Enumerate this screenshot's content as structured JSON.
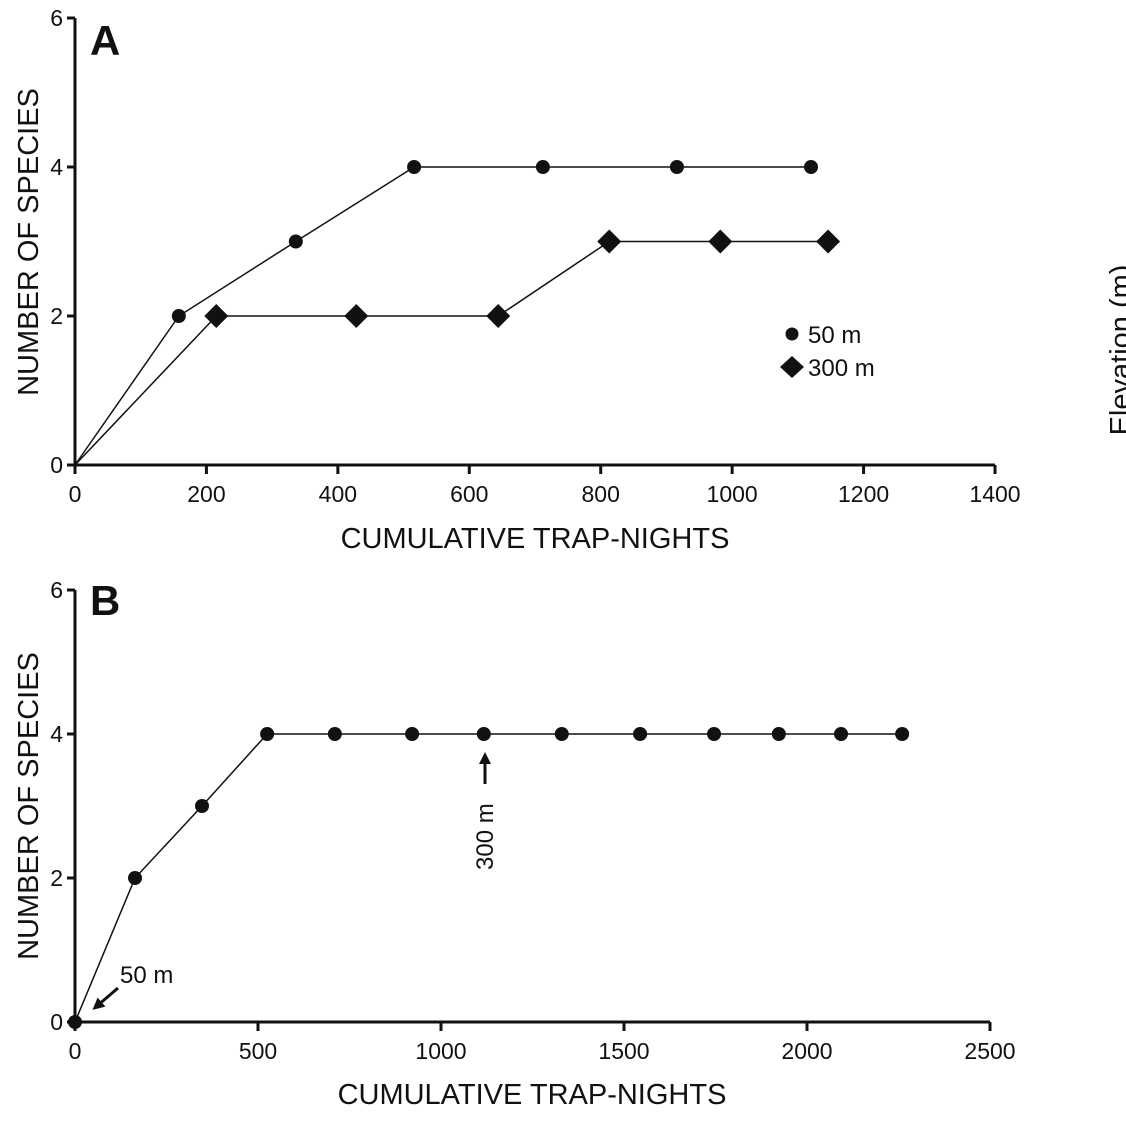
{
  "right_label": "Elevation (m)",
  "chart_data": [
    {
      "type": "line",
      "panel_label": "A",
      "xlabel": "CUMULATIVE TRAP-NIGHTS",
      "ylabel": "NUMBER OF SPECIES",
      "xlim": [
        0,
        1400
      ],
      "ylim": [
        0,
        6
      ],
      "xticks": [
        0,
        200,
        400,
        600,
        800,
        1000,
        1200,
        1400
      ],
      "yticks": [
        0,
        2,
        4,
        6
      ],
      "grid": false,
      "legend_position": "right",
      "series": [
        {
          "name": "50 m",
          "marker": "circle",
          "x": [
            0,
            158,
            336,
            516,
            712,
            916,
            1120
          ],
          "y": [
            0,
            2,
            3,
            4,
            4,
            4,
            4
          ]
        },
        {
          "name": "300 m",
          "marker": "diamond",
          "x": [
            0,
            215,
            428,
            644,
            813,
            982,
            1146
          ],
          "y": [
            0,
            2,
            2,
            2,
            3,
            3,
            3
          ]
        }
      ]
    },
    {
      "type": "line",
      "panel_label": "B",
      "xlabel": "CUMULATIVE TRAP-NIGHTS",
      "ylabel": "NUMBER OF SPECIES",
      "xlim": [
        0,
        2500
      ],
      "ylim": [
        0,
        6
      ],
      "xticks": [
        0,
        500,
        1000,
        1500,
        2000,
        2500
      ],
      "yticks": [
        0,
        2,
        4,
        6
      ],
      "grid": false,
      "series": [
        {
          "marker": "circle",
          "x": [
            0,
            164,
            347,
            525,
            710,
            921,
            1117,
            1330,
            1544,
            1746,
            1923,
            2093,
            2260
          ],
          "y": [
            0,
            2,
            3,
            4,
            4,
            4,
            4,
            4,
            4,
            4,
            4,
            4,
            4
          ]
        }
      ],
      "annotations": [
        {
          "text": "50 m",
          "x": 0,
          "y": 0,
          "arrow": "down-left"
        },
        {
          "text": "300 m",
          "x": 1117,
          "y": 4,
          "arrow": "up"
        }
      ]
    }
  ]
}
